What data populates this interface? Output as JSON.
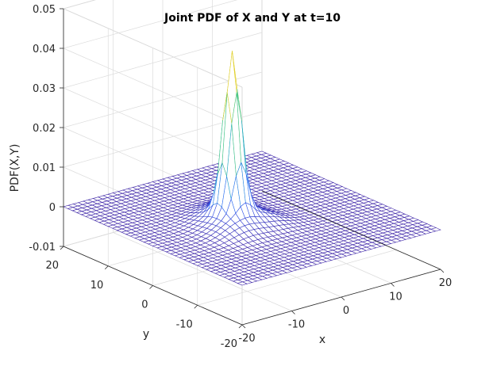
{
  "chart_data": {
    "type": "surface",
    "title": "Joint PDF of X and Y at t=10",
    "xlabel": "x",
    "ylabel": "y",
    "zlabel": "PDF(X,Y)",
    "xlim": [
      -20,
      20
    ],
    "ylim": [
      -20,
      20
    ],
    "zlim": [
      -0.01,
      0.05
    ],
    "x_ticks": [
      -20,
      -10,
      0,
      10,
      20
    ],
    "y_ticks": [
      -20,
      -10,
      0,
      10,
      20
    ],
    "z_ticks": [
      -0.01,
      0,
      0.01,
      0.02,
      0.03,
      0.04,
      0.05
    ],
    "x_tick_labels": [
      "-20",
      "-10",
      "0",
      "10",
      "20"
    ],
    "y_tick_labels": [
      "-20",
      "-10",
      "0",
      "10",
      "20"
    ],
    "z_tick_labels": [
      "-0.01",
      "0",
      "0.01",
      "0.02",
      "0.03",
      "0.04",
      "0.05"
    ],
    "grid": true,
    "style": "mesh",
    "colormap": [
      "#3e26a8",
      "#2e61f9",
      "#2c9cd8",
      "#1dbeab",
      "#6ccb5f",
      "#d4bb3d",
      "#f9fb15"
    ],
    "grid_points": 41,
    "peak": {
      "x": -4,
      "y": 0,
      "z": 0.0385
    },
    "surface_features": [
      {
        "x": -4,
        "y": 0,
        "z": 0.0385,
        "sx": 1.3,
        "sy": 1.3
      },
      {
        "x": -4,
        "y": 0,
        "z": 0.0045,
        "sx": 3.5,
        "sy": 3.5
      },
      {
        "x": -1,
        "y": 4,
        "z": 0.0018,
        "sx": 3.0,
        "sy": 2.5
      },
      {
        "x": -7,
        "y": -4,
        "z": 0.0015,
        "sx": 3.0,
        "sy": 2.5
      },
      {
        "x": 1,
        "y": -3,
        "z": 0.0012,
        "sx": 2.5,
        "sy": 2.5
      }
    ]
  }
}
